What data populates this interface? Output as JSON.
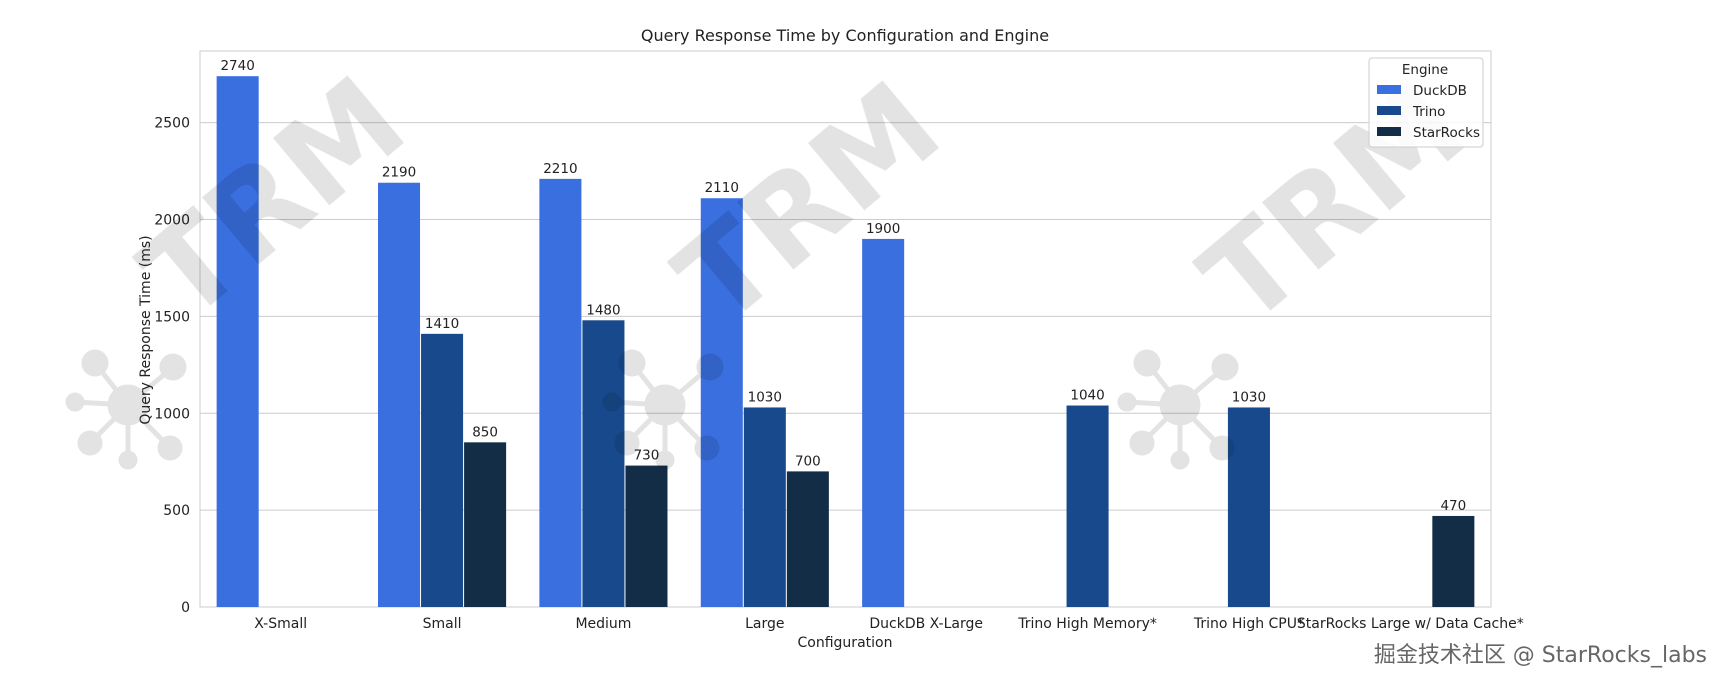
{
  "chart_data": {
    "type": "bar",
    "title": "Query Response Time by Configuration and Engine",
    "xlabel": "Configuration",
    "ylabel": "Query Response Time (ms)",
    "ylim": [
      0,
      2870
    ],
    "yticks": [
      0,
      500,
      1000,
      1500,
      2000,
      2500
    ],
    "grid": true,
    "legend": {
      "title": "Engine",
      "placement": "top-right"
    },
    "categories": [
      "X-Small",
      "Small",
      "Medium",
      "Large",
      "DuckDB X-Large",
      "Trino High Memory*",
      "Trino High CPU*",
      "StarRocks Large w/ Data Cache*"
    ],
    "series": [
      {
        "name": "DuckDB",
        "color": "#3a6fe0",
        "values": [
          2740,
          2190,
          2210,
          2110,
          1900,
          null,
          null,
          null
        ]
      },
      {
        "name": "Trino",
        "color": "#18498c",
        "values": [
          null,
          1410,
          1480,
          1030,
          null,
          1040,
          1030,
          null
        ]
      },
      {
        "name": "StarRocks",
        "color": "#142d46",
        "values": [
          null,
          850,
          730,
          700,
          null,
          null,
          null,
          470
        ]
      }
    ]
  },
  "watermark": {
    "logo_text": "TRM",
    "footer": "掘金技术社区 @ StarRocks_labs"
  }
}
